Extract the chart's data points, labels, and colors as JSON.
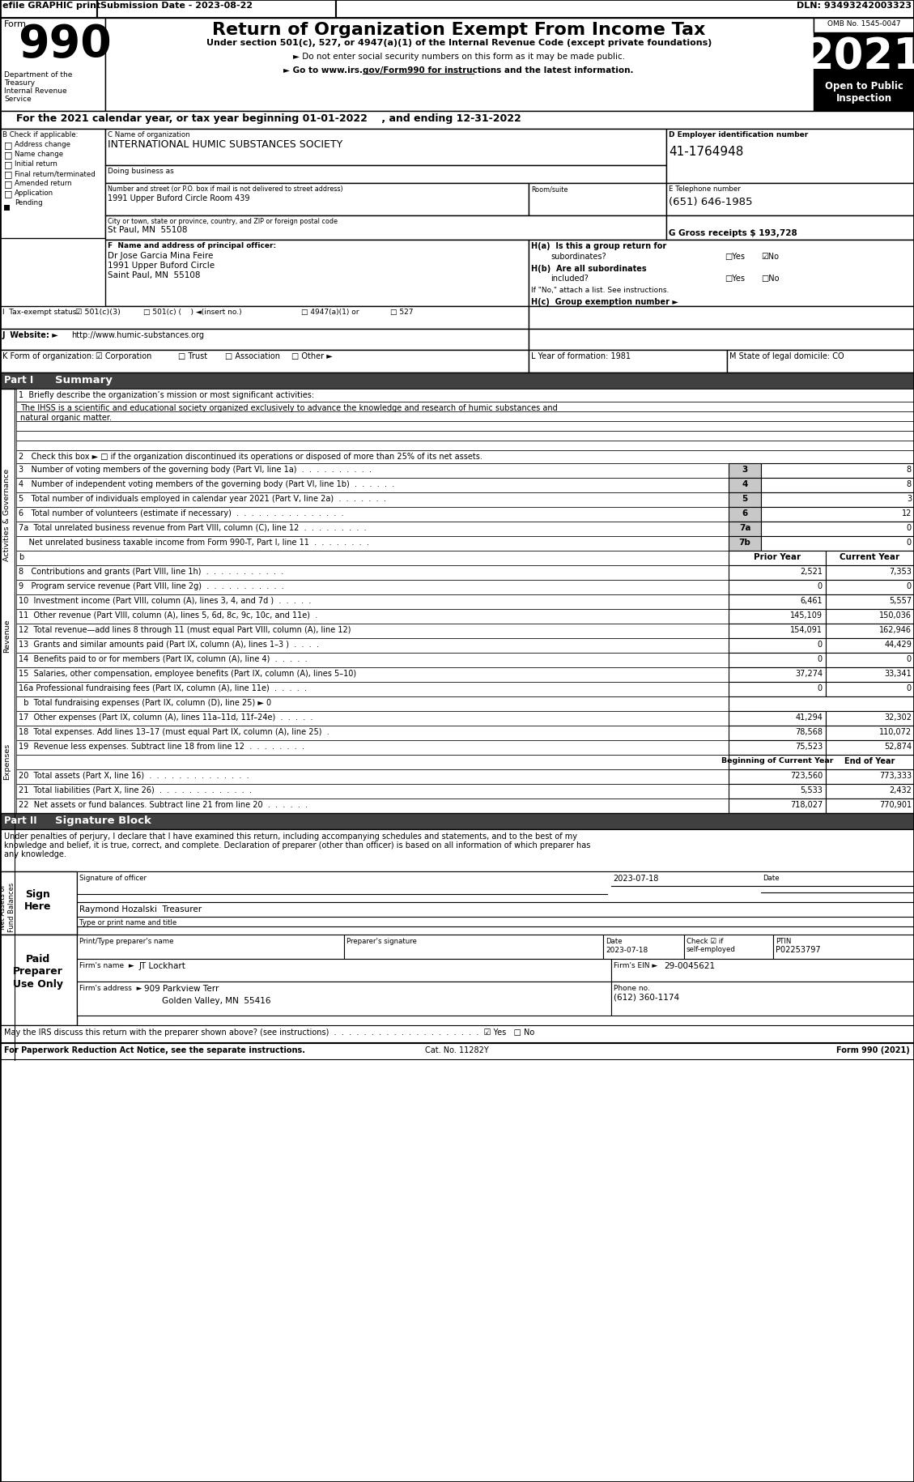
{
  "main_title": "Return of Organization Exempt From Income Tax",
  "subtitle1": "Under section 501(c), 527, or 4947(a)(1) of the Internal Revenue Code (except private foundations)",
  "subtitle2": "► Do not enter social security numbers on this form as it may be made public.",
  "subtitle3": "► Go to www.irs.gov/Form990 for instructions and the latest information.",
  "year": "2021",
  "omb": "OMB No. 1545-0047",
  "tax_year_line": "For the 2021 calendar year, or tax year beginning 01-01-2022    , and ending 12-31-2022",
  "org_name": "INTERNATIONAL HUMIC SUBSTANCES SOCIETY",
  "dba_label": "Doing business as",
  "address_val": "1991 Upper Buford Circle Room 439",
  "city_val": "St Paul, MN  55108",
  "ein_val": "41-1764948",
  "phone_val": "(651) 646-1985",
  "gross_label": "G Gross receipts $ 193,728",
  "principal_name": "Dr Jose Garcia Mina Feire",
  "principal_addr1": "1991 Upper Buford Circle",
  "principal_addr2": "Saint Paul, MN  55108",
  "website_val": "http://www.humic-substances.org",
  "year_form": "L Year of formation: 1981",
  "state_dom": "M State of legal domicile: CO",
  "line1_val1": "The IHSS is a scientific and educational society organized exclusively to advance the knowledge and research of humic substances and",
  "line1_val2": "natural organic matter.",
  "sig_text1": "Under penalties of perjury, I declare that I have examined this return, including accompanying schedules and statements, and to the best of my",
  "sig_text2": "knowledge and belief, it is true, correct, and complete. Declaration of preparer (other than officer) is based on all information of which preparer has",
  "sig_text3": "any knowledge.",
  "sig_name": "Raymond Hozalski  Treasurer",
  "sig_title": "Type or print name and title",
  "preparer_ptin": "P02253797",
  "firm_name": "JT Lockhart",
  "firm_ein": "29-0045621",
  "firm_addr": "909 Parkview Terr",
  "firm_city": "Golden Valley, MN  55416",
  "firm_phone": "(612) 360-1174",
  "footer1": "For Paperwork Reduction Act Notice, see the separate instructions.",
  "footer_cat": "Cat. No. 11282Y",
  "footer_form": "Form 990 (2021)"
}
